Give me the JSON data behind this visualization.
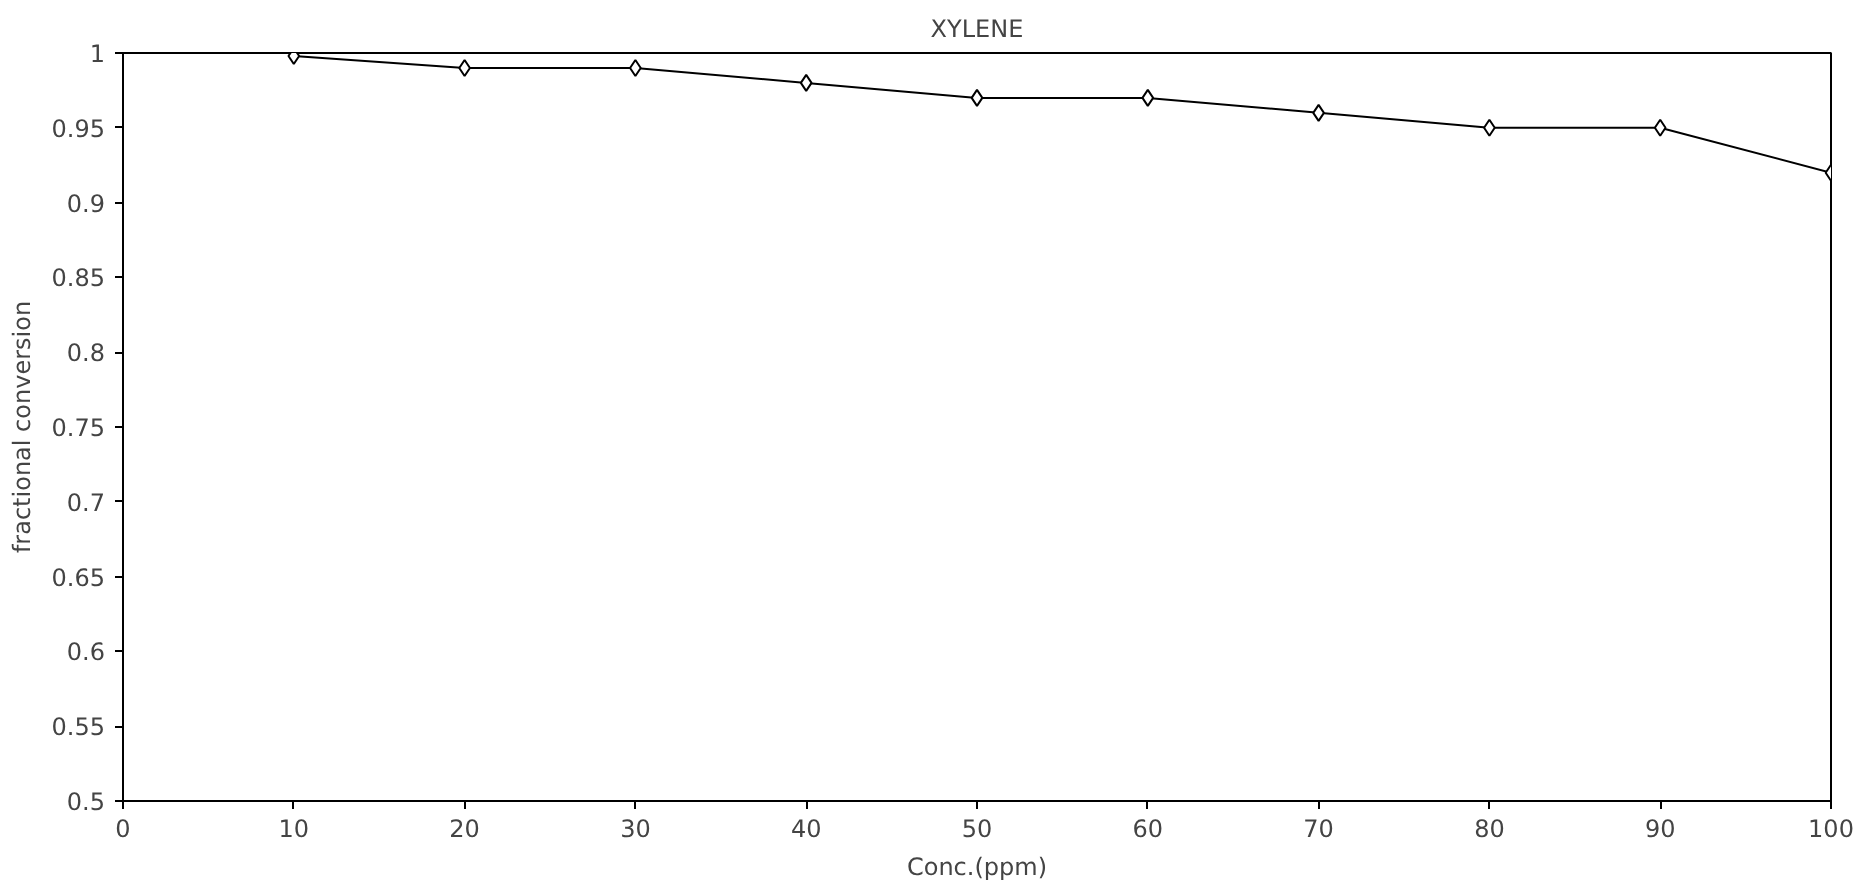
{
  "chart_data": {
    "type": "line",
    "title": "XYLENE",
    "xlabel": "Conc.(ppm)",
    "ylabel": "fractional conversion",
    "x": [
      10,
      20,
      30,
      40,
      50,
      60,
      70,
      80,
      90,
      100
    ],
    "series": [
      {
        "color": "#000000",
        "values": [
          0.998,
          0.99,
          0.99,
          0.98,
          0.97,
          0.97,
          0.96,
          0.95,
          0.95,
          0.92
        ]
      }
    ],
    "xlim": [
      0,
      100
    ],
    "xticks": [
      0,
      10,
      20,
      30,
      40,
      50,
      60,
      70,
      80,
      90,
      100
    ],
    "ylim": [
      0.5,
      1
    ],
    "yticks": [
      0.5,
      0.55,
      0.6,
      0.65,
      0.7,
      0.75,
      0.8,
      0.85,
      0.9,
      0.95,
      1
    ],
    "marker": "diamond",
    "line_style": "solid",
    "grid": false
  }
}
